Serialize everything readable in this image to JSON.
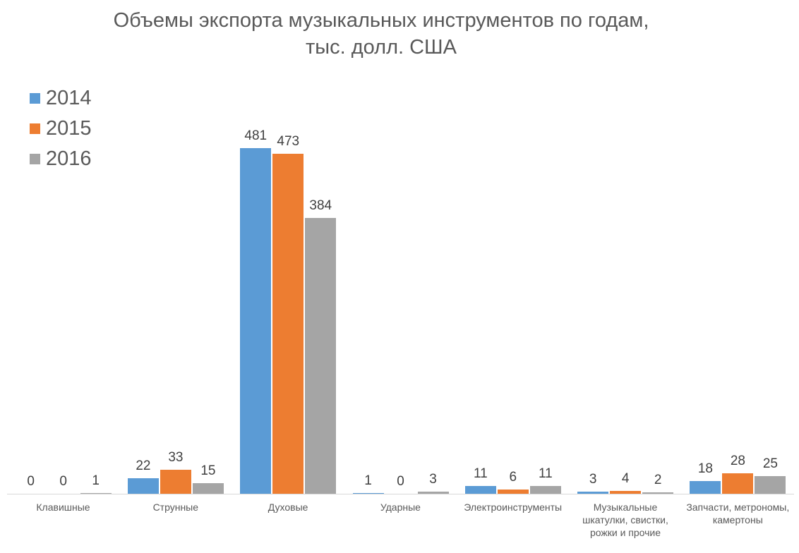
{
  "title_line1": "Объемы экспорта музыкальных инструментов по годам,",
  "title_line2": "тыс. долл. США",
  "colors": {
    "2014": "#5b9bd5",
    "2015": "#ed7d31",
    "2016": "#a5a5a5"
  },
  "legend": [
    {
      "label": "2014",
      "color": "#5b9bd5"
    },
    {
      "label": "2015",
      "color": "#ed7d31"
    },
    {
      "label": "2016",
      "color": "#a5a5a5"
    }
  ],
  "chart_data": {
    "type": "bar",
    "title": "Объемы экспорта музыкальных инструментов по годам, тыс. долл. США",
    "xlabel": "",
    "ylabel": "",
    "categories": [
      "Клавишные",
      "Струнные",
      "Духовые",
      "Ударные",
      "Электроинструменты",
      "Музыкальные шкатулки, свистки, рожки и прочие",
      "Запчасти, метрономы, камертоны"
    ],
    "series": [
      {
        "name": "2014",
        "color": "#5b9bd5",
        "values": [
          0,
          22,
          481,
          1,
          11,
          3,
          18
        ]
      },
      {
        "name": "2015",
        "color": "#ed7d31",
        "values": [
          0,
          33,
          473,
          0,
          6,
          4,
          28
        ]
      },
      {
        "name": "2016",
        "color": "#a5a5a5",
        "values": [
          1,
          15,
          384,
          3,
          11,
          2,
          25
        ]
      }
    ],
    "data_labels": true,
    "grid": false,
    "legend_position": "top-left",
    "ylim": [
      0,
      481
    ]
  }
}
